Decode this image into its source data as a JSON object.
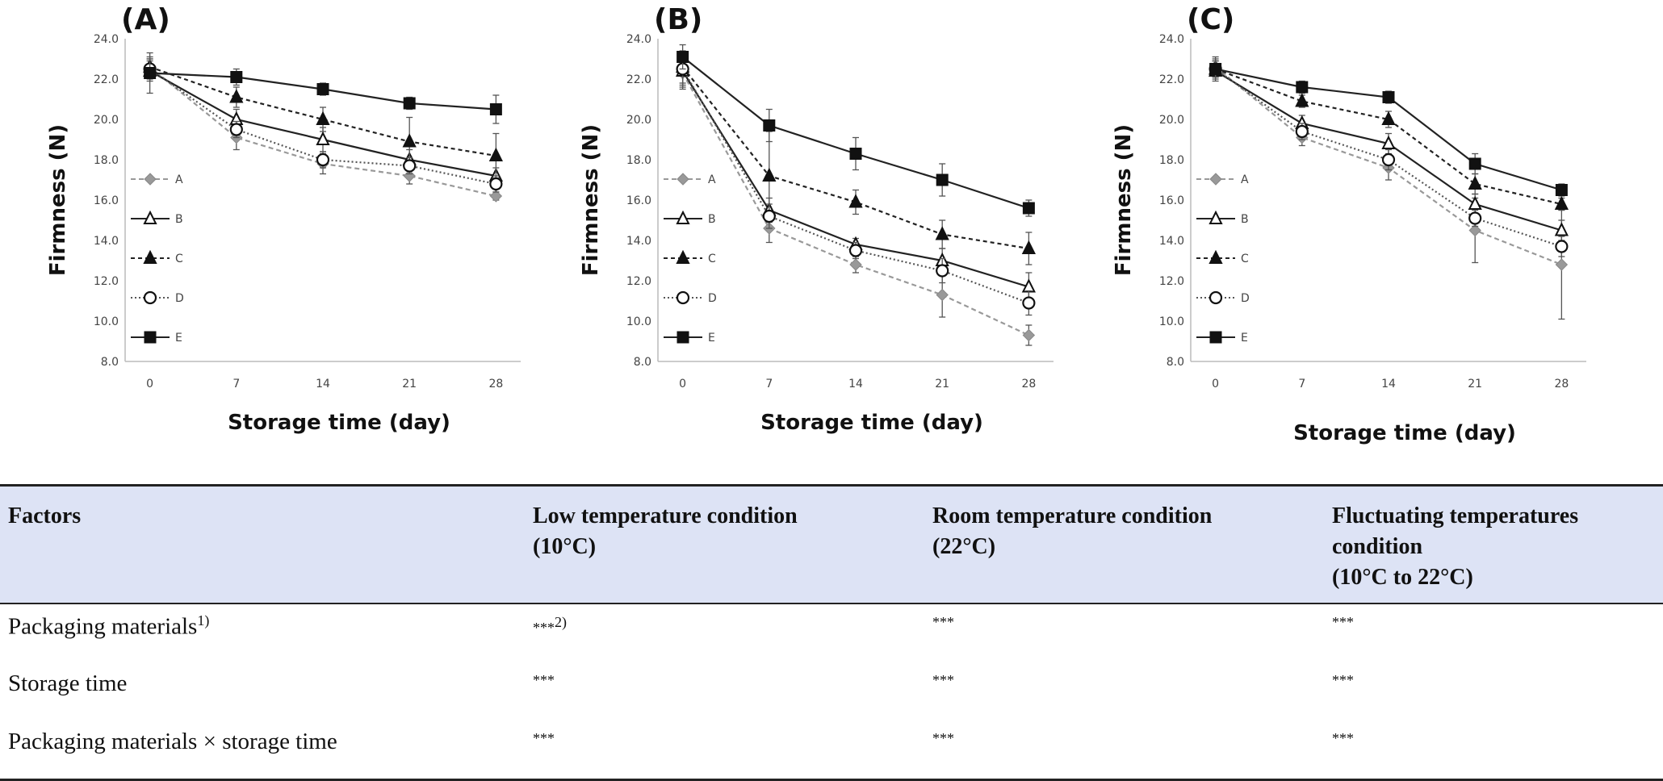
{
  "charts": [
    {
      "panel": "(A)",
      "chart_data": {
        "type": "line",
        "ylabel": "Firmness (N)",
        "xlabel": "Storage time (day)",
        "ylim": [
          8.0,
          24.0
        ],
        "yticks": [
          "8.0",
          "10.0",
          "12.0",
          "14.0",
          "16.0",
          "18.0",
          "20.0",
          "22.0",
          "24.0"
        ],
        "x": [
          0,
          7,
          14,
          21,
          28
        ],
        "legend_position": "left-inside",
        "series": [
          {
            "name": "A",
            "values": [
              22.6,
              19.1,
              17.8,
              17.2,
              16.2
            ],
            "errors": [
              0.5,
              0.6,
              0.5,
              0.4,
              0.2
            ]
          },
          {
            "name": "B",
            "values": [
              22.4,
              20.0,
              19.0,
              18.0,
              17.2
            ],
            "errors": [
              0.5,
              0.5,
              0.6,
              0.5,
              0.4
            ]
          },
          {
            "name": "C",
            "values": [
              22.6,
              21.1,
              20.0,
              18.9,
              18.2
            ],
            "errors": [
              0.4,
              0.5,
              0.6,
              1.2,
              1.1
            ]
          },
          {
            "name": "D",
            "values": [
              22.5,
              19.5,
              18.0,
              17.7,
              16.8
            ],
            "errors": [
              0.5,
              0.4,
              0.4,
              0.4,
              0.4
            ]
          },
          {
            "name": "E",
            "values": [
              22.3,
              22.1,
              21.5,
              20.8,
              20.5
            ],
            "errors": [
              1.0,
              0.4,
              0.3,
              0.3,
              0.7
            ]
          }
        ]
      }
    },
    {
      "panel": "(B)",
      "chart_data": {
        "type": "line",
        "ylabel": "Firmness (N)",
        "xlabel": "Storage time (day)",
        "ylim": [
          8.0,
          24.0
        ],
        "yticks": [
          "8.0",
          "10.0",
          "12.0",
          "14.0",
          "16.0",
          "18.0",
          "20.0",
          "22.0",
          "24.0"
        ],
        "x": [
          0,
          7,
          14,
          21,
          28
        ],
        "legend_position": "left-inside",
        "series": [
          {
            "name": "A",
            "values": [
              22.3,
              14.6,
              12.8,
              11.3,
              9.3
            ],
            "errors": [
              0.8,
              0.7,
              0.4,
              1.1,
              0.5
            ]
          },
          {
            "name": "B",
            "values": [
              22.4,
              15.5,
              13.8,
              13.0,
              11.7
            ],
            "errors": [
              0.8,
              0.6,
              0.3,
              0.6,
              0.7
            ]
          },
          {
            "name": "C",
            "values": [
              22.6,
              17.2,
              15.9,
              14.3,
              13.6
            ],
            "errors": [
              0.8,
              2.2,
              0.6,
              0.7,
              0.8
            ]
          },
          {
            "name": "D",
            "values": [
              22.5,
              15.2,
              13.5,
              12.5,
              10.9
            ],
            "errors": [
              0.8,
              0.6,
              0.4,
              0.6,
              0.6
            ]
          },
          {
            "name": "E",
            "values": [
              23.1,
              19.7,
              18.3,
              17.0,
              15.6
            ],
            "errors": [
              0.6,
              0.8,
              0.8,
              0.8,
              0.4
            ]
          }
        ]
      }
    },
    {
      "panel": "(C)",
      "chart_data": {
        "type": "line",
        "ylabel": "Firmness (N)",
        "xlabel": "Storage time (day)",
        "ylim": [
          8.0,
          24.0
        ],
        "yticks": [
          "8.0",
          "10.0",
          "12.0",
          "14.0",
          "16.0",
          "18.0",
          "20.0",
          "22.0",
          "24.0"
        ],
        "x": [
          0,
          7,
          14,
          21,
          28
        ],
        "legend_position": "left-inside",
        "series": [
          {
            "name": "A",
            "values": [
              22.6,
              19.1,
              17.6,
              14.5,
              12.8
            ],
            "errors": [
              0.5,
              0.4,
              0.6,
              1.6,
              2.7
            ]
          },
          {
            "name": "B",
            "values": [
              22.4,
              19.8,
              18.8,
              15.8,
              14.5
            ],
            "errors": [
              0.5,
              0.4,
              0.5,
              0.5,
              0.5
            ]
          },
          {
            "name": "C",
            "values": [
              22.5,
              20.9,
              20.0,
              16.8,
              15.8
            ],
            "errors": [
              0.4,
              0.3,
              0.4,
              0.5,
              0.3
            ]
          },
          {
            "name": "D",
            "values": [
              22.5,
              19.4,
              18.0,
              15.1,
              13.7
            ],
            "errors": [
              0.5,
              0.4,
              0.5,
              0.4,
              0.5
            ]
          },
          {
            "name": "E",
            "values": [
              22.5,
              21.6,
              21.1,
              17.8,
              16.5
            ],
            "errors": [
              0.4,
              0.3,
              0.3,
              0.5,
              0.3
            ]
          }
        ]
      }
    }
  ],
  "table": {
    "headers": {
      "factors": "Factors",
      "low_line1": "Low temperature condition",
      "low_line2": "(10°C)",
      "room_line1": "Room temperature condition",
      "room_line2": "(22°C)",
      "fluct_line1": "Fluctuating temperatures condition",
      "fluct_line2": "(10°C to 22°C)"
    },
    "rows": [
      {
        "factor": "Packaging materials",
        "factor_sup": "1)",
        "low": "***",
        "low_sup": "2)",
        "room": "***",
        "fluct": "***"
      },
      {
        "factor": "Storage time",
        "low": "***",
        "room": "***",
        "fluct": "***"
      },
      {
        "factor": "Packaging materials × storage time",
        "low": "***",
        "room": "***",
        "fluct": "***"
      }
    ]
  }
}
